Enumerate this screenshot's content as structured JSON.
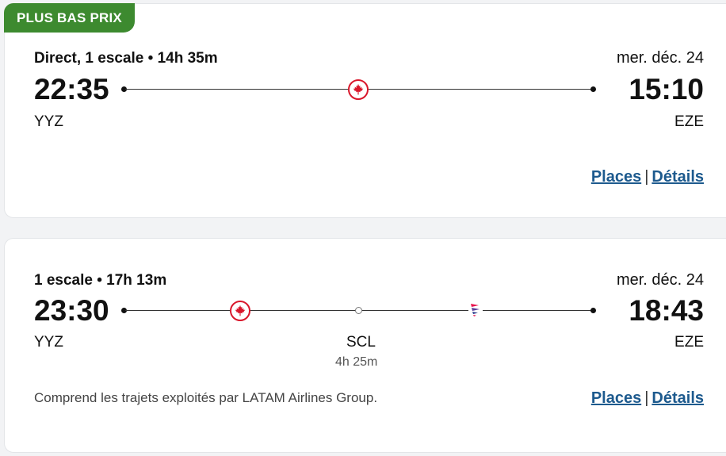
{
  "flights": [
    {
      "badge": "PLUS BAS PRIX",
      "summary": "Direct, 1 escale • 14h 35m",
      "date": "mer. déc. 24",
      "depart_time": "22:35",
      "arrive_time": "15:10",
      "origin": "YYZ",
      "destination": "EZE",
      "links": {
        "seats": "Places",
        "details": "Détails",
        "separator": "|"
      },
      "carriers": [
        "air-canada-icon"
      ]
    },
    {
      "summary": "1 escale • 17h 13m",
      "date": "mer. déc. 24",
      "depart_time": "23:30",
      "arrive_time": "18:43",
      "origin": "YYZ",
      "destination": "EZE",
      "layover": {
        "code": "SCL",
        "duration": "4h 25m"
      },
      "note": "Comprend les trajets exploités par LATAM Airlines Group.",
      "links": {
        "seats": "Places",
        "details": "Détails",
        "separator": "|"
      },
      "carriers": [
        "air-canada-icon",
        "latam-icon"
      ]
    }
  ],
  "colors": {
    "badge": "#3d8a2f",
    "link": "#1d5a8e",
    "air_canada": "#d9172b"
  }
}
